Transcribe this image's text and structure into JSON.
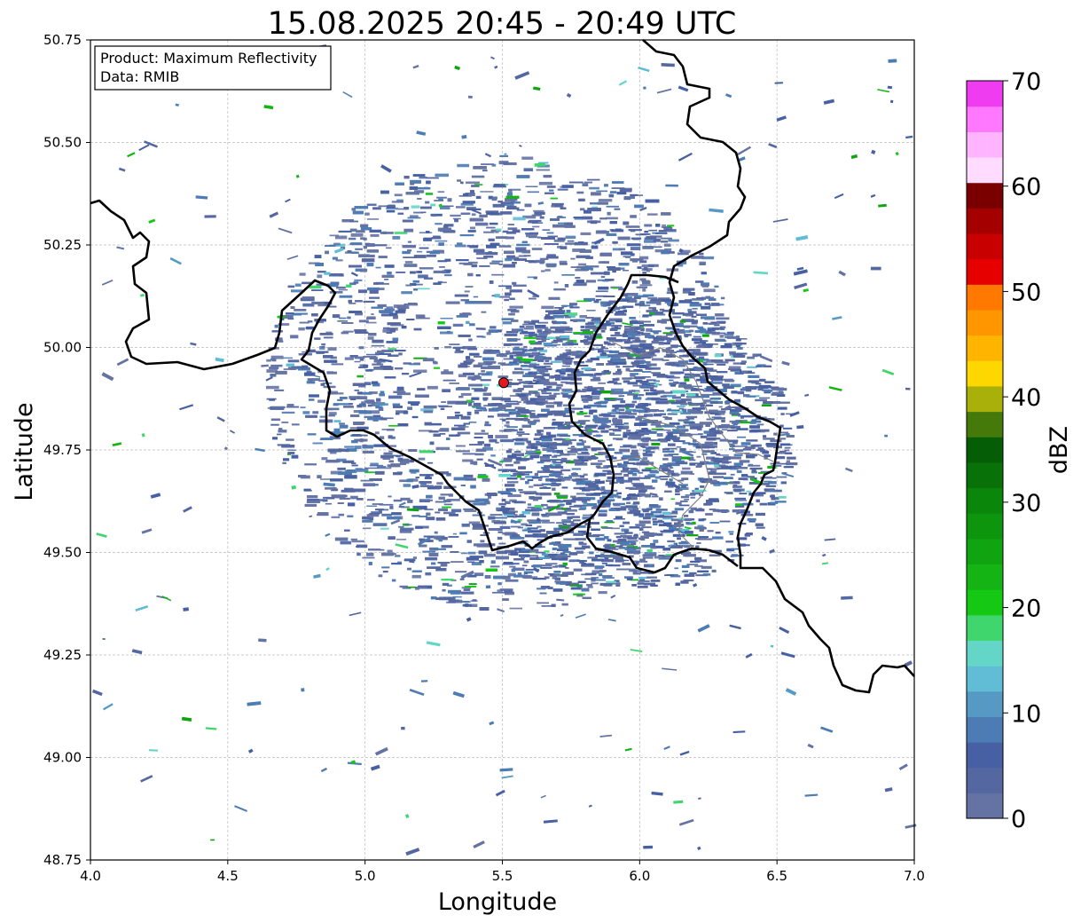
{
  "title": "15.08.2025 20:45 - 20:49 UTC",
  "info_box": {
    "product_line": "Product: Maximum Reflectivity",
    "data_line": "Data: RMIB"
  },
  "map": {
    "xlabel": "Longitude",
    "ylabel": "Latitude",
    "xlim": [
      4.0,
      7.0
    ],
    "ylim": [
      48.75,
      50.75
    ],
    "xticks": [
      "4.0",
      "4.5",
      "5.0",
      "5.5",
      "6.0",
      "6.5",
      "7.0"
    ],
    "yticks": [
      "48.75",
      "49.00",
      "49.25",
      "49.50",
      "49.75",
      "50.00",
      "50.25",
      "50.50",
      "50.75"
    ],
    "grid": true,
    "radar_site": {
      "lon": 5.505,
      "lat": 49.914,
      "color": "#e31a1c"
    },
    "border_color": "#000000",
    "admin_border_color": "#808080"
  },
  "colorbar": {
    "label": "dBZ",
    "range": [
      0,
      70
    ],
    "tick_labels": [
      "0",
      "10",
      "20",
      "30",
      "40",
      "50",
      "60",
      "70"
    ],
    "colors": [
      "#6473a3",
      "#5567a1",
      "#4660a3",
      "#4d7bb3",
      "#5599c4",
      "#61bcd6",
      "#64d6c8",
      "#3fd66e",
      "#14c814",
      "#13b413",
      "#10a510",
      "#0d960d",
      "#0a870a",
      "#087208",
      "#055e05",
      "#457a0a",
      "#aab00a",
      "#ffd700",
      "#ffb400",
      "#ff9600",
      "#ff7800",
      "#e60000",
      "#c80000",
      "#a50000",
      "#7a0000",
      "#ffdcff",
      "#ffb4ff",
      "#ff78ff",
      "#f03cf0"
    ]
  }
}
